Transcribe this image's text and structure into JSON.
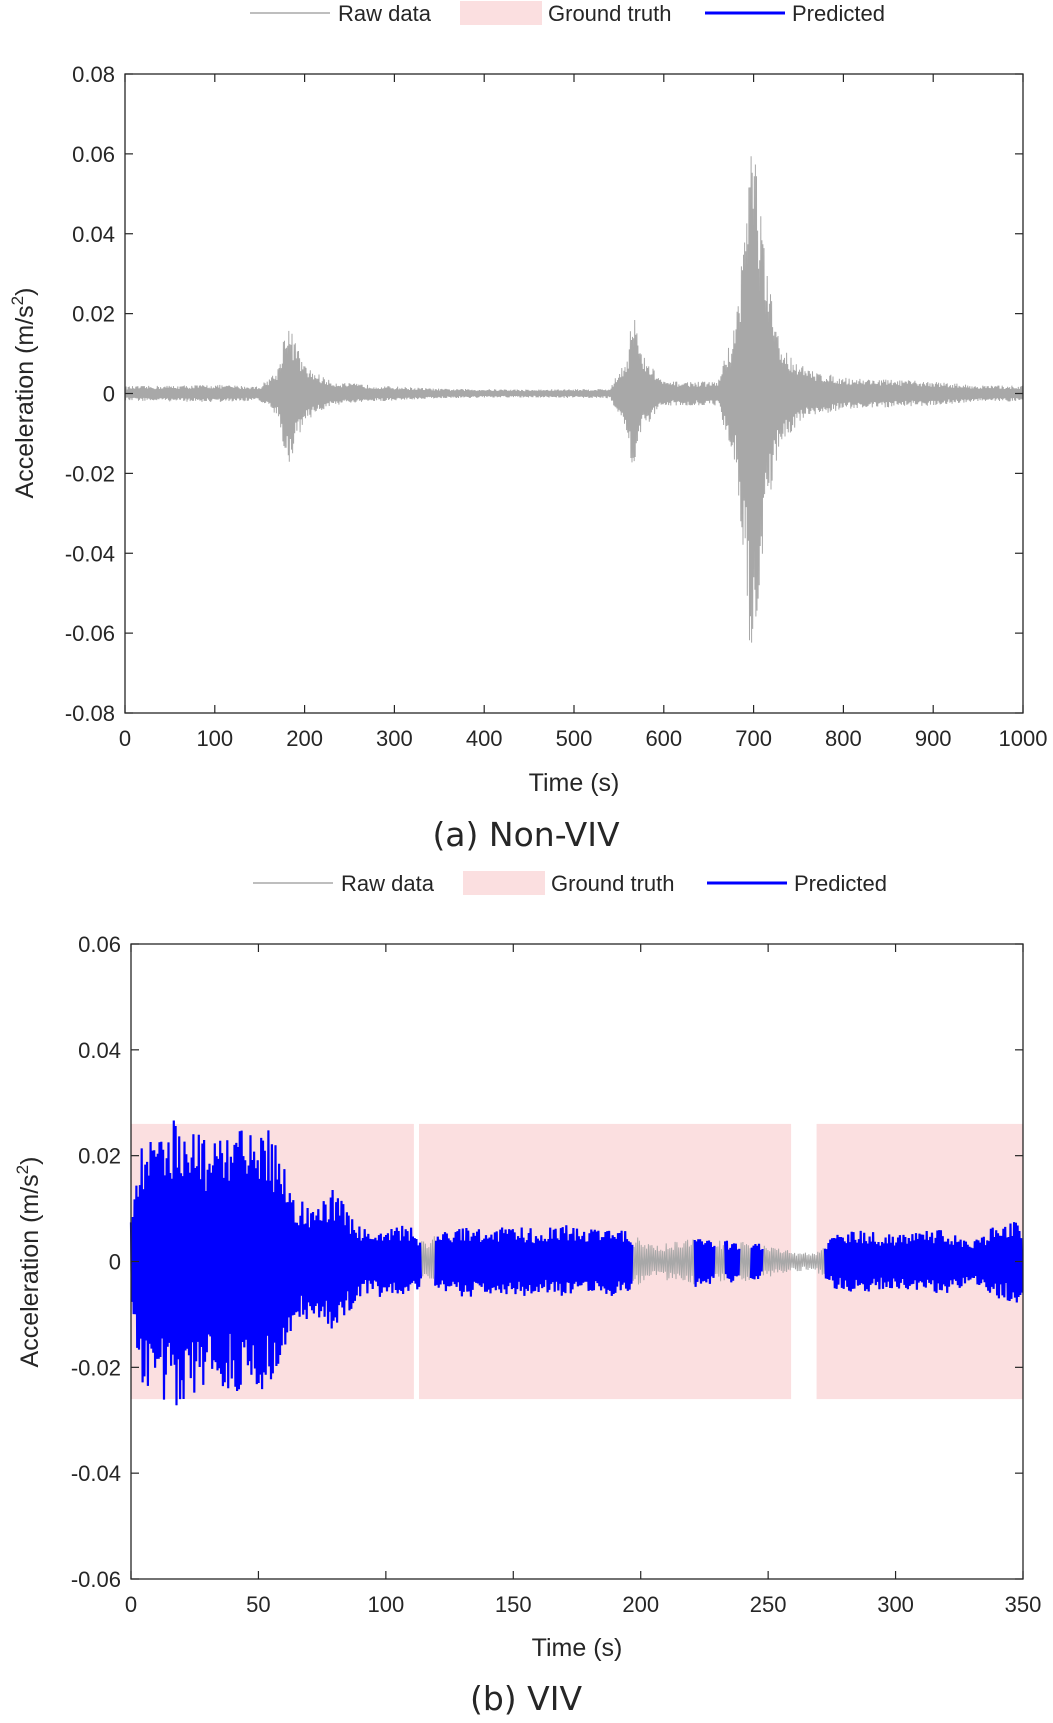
{
  "legend": {
    "raw": "Raw data",
    "truth": "Ground truth",
    "pred": "Predicted"
  },
  "colors": {
    "raw": "#a8a8a8",
    "truth": "#fbdfe0",
    "pred": "#0000ff",
    "axis": "#262626"
  },
  "chart_data": [
    {
      "type": "line",
      "caption": "(a) Non-VIV",
      "xlabel": "Time (s)",
      "ylabel": "Acceleration (m/s",
      "ylabel_sup": "2",
      "ylabel_close": ")",
      "xlim": [
        0,
        1000
      ],
      "ylim": [
        -0.08,
        0.08
      ],
      "xticks": [
        0,
        100,
        200,
        300,
        400,
        500,
        600,
        700,
        800,
        900,
        1000
      ],
      "xtick_labels": [
        "0",
        "100",
        "200",
        "300",
        "400",
        "500",
        "600",
        "700",
        "800",
        "900",
        "1000"
      ],
      "yticks": [
        -0.08,
        -0.06,
        -0.04,
        -0.02,
        0,
        0.02,
        0.04,
        0.06,
        0.08
      ],
      "ytick_labels": [
        "-0.08",
        "-0.06",
        "-0.04",
        "-0.02",
        "0",
        "0.02",
        "0.04",
        "0.06",
        "0.08"
      ],
      "ground_truth_intervals": [],
      "predicted_intervals": [],
      "raw_envelope": [
        [
          0,
          0.0018
        ],
        [
          50,
          0.002
        ],
        [
          100,
          0.0022
        ],
        [
          150,
          0.0018
        ],
        [
          170,
          0.006
        ],
        [
          180,
          0.019
        ],
        [
          190,
          0.013
        ],
        [
          200,
          0.007
        ],
        [
          230,
          0.003
        ],
        [
          280,
          0.002
        ],
        [
          350,
          0.0012
        ],
        [
          450,
          0.001
        ],
        [
          540,
          0.0012
        ],
        [
          560,
          0.01
        ],
        [
          565,
          0.023
        ],
        [
          575,
          0.01
        ],
        [
          600,
          0.003
        ],
        [
          660,
          0.003
        ],
        [
          680,
          0.018
        ],
        [
          690,
          0.045
        ],
        [
          698,
          0.07
        ],
        [
          705,
          0.055
        ],
        [
          715,
          0.03
        ],
        [
          730,
          0.012
        ],
        [
          760,
          0.006
        ],
        [
          800,
          0.004
        ],
        [
          850,
          0.0035
        ],
        [
          900,
          0.003
        ],
        [
          950,
          0.002
        ],
        [
          1000,
          0.002
        ]
      ],
      "raw_period": 1.4
    },
    {
      "type": "line",
      "caption": "(b) VIV",
      "xlabel": "Time (s)",
      "ylabel": "Acceleration (m/s",
      "ylabel_sup": "2",
      "ylabel_close": ")",
      "xlim": [
        0,
        350
      ],
      "ylim": [
        -0.06,
        0.06
      ],
      "xticks": [
        0,
        50,
        100,
        150,
        200,
        250,
        300,
        350
      ],
      "xtick_labels": [
        "0",
        "50",
        "100",
        "150",
        "200",
        "250",
        "300",
        "350"
      ],
      "yticks": [
        -0.06,
        -0.04,
        -0.02,
        0,
        0.02,
        0.04,
        0.06
      ],
      "ytick_labels": [
        "-0.06",
        "-0.04",
        "-0.02",
        "0",
        "0.02",
        "0.04",
        "0.06"
      ],
      "ground_truth_intervals": [
        [
          0,
          111
        ],
        [
          113,
          259
        ],
        [
          269,
          350
        ]
      ],
      "ground_truth_level": 0.026,
      "predicted_intervals": [
        [
          0,
          114
        ],
        [
          119,
          197
        ],
        [
          221,
          229
        ],
        [
          233,
          239
        ],
        [
          243,
          248
        ],
        [
          272,
          350
        ]
      ],
      "raw_envelope": [
        [
          0,
          0.01
        ],
        [
          3,
          0.022
        ],
        [
          8,
          0.025
        ],
        [
          15,
          0.027
        ],
        [
          18,
          0.029
        ],
        [
          22,
          0.026
        ],
        [
          30,
          0.023
        ],
        [
          40,
          0.025
        ],
        [
          50,
          0.026
        ],
        [
          55,
          0.025
        ],
        [
          60,
          0.018
        ],
        [
          65,
          0.012
        ],
        [
          72,
          0.01
        ],
        [
          80,
          0.014
        ],
        [
          85,
          0.01
        ],
        [
          92,
          0.006
        ],
        [
          100,
          0.007
        ],
        [
          110,
          0.007
        ],
        [
          115,
          0.004
        ],
        [
          120,
          0.005
        ],
        [
          130,
          0.007
        ],
        [
          140,
          0.006
        ],
        [
          150,
          0.007
        ],
        [
          160,
          0.006
        ],
        [
          170,
          0.007
        ],
        [
          180,
          0.006
        ],
        [
          190,
          0.007
        ],
        [
          197,
          0.005
        ],
        [
          205,
          0.003
        ],
        [
          215,
          0.004
        ],
        [
          222,
          0.005
        ],
        [
          230,
          0.004
        ],
        [
          240,
          0.004
        ],
        [
          250,
          0.003
        ],
        [
          260,
          0.002
        ],
        [
          268,
          0.0015
        ],
        [
          275,
          0.005
        ],
        [
          285,
          0.006
        ],
        [
          300,
          0.005
        ],
        [
          310,
          0.006
        ],
        [
          320,
          0.006
        ],
        [
          330,
          0.004
        ],
        [
          340,
          0.007
        ],
        [
          350,
          0.008
        ]
      ],
      "raw_period": 1.4
    }
  ]
}
